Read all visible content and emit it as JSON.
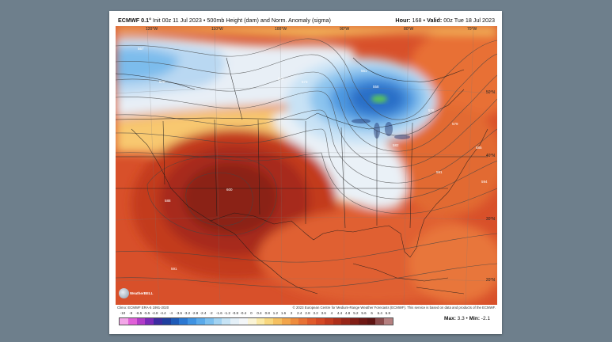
{
  "header": {
    "model": "ECMWF 0.1°",
    "init": "Init 00z 11 Jul 2023",
    "product": "500mb Height (dam) and Norm. Anomaly (sigma)",
    "hour_label": "Hour:",
    "hour_value": "168",
    "valid_label": "Valid:",
    "valid_value": "00z Tue 18 Jul 2023"
  },
  "longitude_labels": [
    "120°W",
    "110°W",
    "100°W",
    "90°W",
    "80°W",
    "70°W"
  ],
  "latitude_labels": [
    "50°N",
    "40°N",
    "30°N",
    "20°N"
  ],
  "contour_labels": {
    "c567": "567",
    "c570": "570",
    "c573": "573",
    "c561": "561",
    "c558": "558",
    "c582": "582",
    "c585": "585",
    "c591": "591",
    "c594": "594",
    "c600": "600",
    "c588": "588",
    "c576": "576",
    "c579": "579"
  },
  "footer": {
    "left": "Climo: ECMWF ERA-5 1991-2020",
    "right": "© 2023 European Centre for Medium-Range Weather Forecasts (ECMWF). This service is based on data and products of the ECMWF."
  },
  "logo_text": "WeatherBELL",
  "colorbar": {
    "ticks": [
      "-10",
      "-8",
      "-6.5",
      "-5.5",
      "-4.8",
      "-4.4",
      "-4",
      "-3.6",
      "-3.2",
      "-2.8",
      "-2.4",
      "-2",
      "-1.6",
      "-1.2",
      "-0.8",
      "-0.4",
      "0",
      "0.4",
      "0.8",
      "1.2",
      "1.6",
      "2",
      "2.4",
      "2.8",
      "3.2",
      "3.6",
      "4",
      "4.4",
      "4.8",
      "5.2",
      "5.6",
      "6",
      "6.4",
      "6.8"
    ],
    "colors": [
      "#f3a6e8",
      "#e060d8",
      "#b23cc8",
      "#7b2ab8",
      "#3c2ca0",
      "#1f3f9e",
      "#1e5bb8",
      "#2b78d2",
      "#3f93e2",
      "#5aaaea",
      "#7cc0ef",
      "#a2d3f2",
      "#c6e4f6",
      "#e4f0f8",
      "#f3f6f8",
      "#fbf4d6",
      "#fbe9a6",
      "#f8d77e",
      "#f5c060",
      "#f2a54a",
      "#ee8c3c",
      "#e87234",
      "#e05a2a",
      "#d44824",
      "#c23a1e",
      "#ad2f1a",
      "#982618",
      "#821e16",
      "#6e1814",
      "#5e1412",
      "#8a4a4a",
      "#b58080"
    ]
  },
  "minmax": {
    "max_label": "Max:",
    "max_value": "3.3",
    "min_label": "Min:",
    "min_value": "-2.1"
  }
}
